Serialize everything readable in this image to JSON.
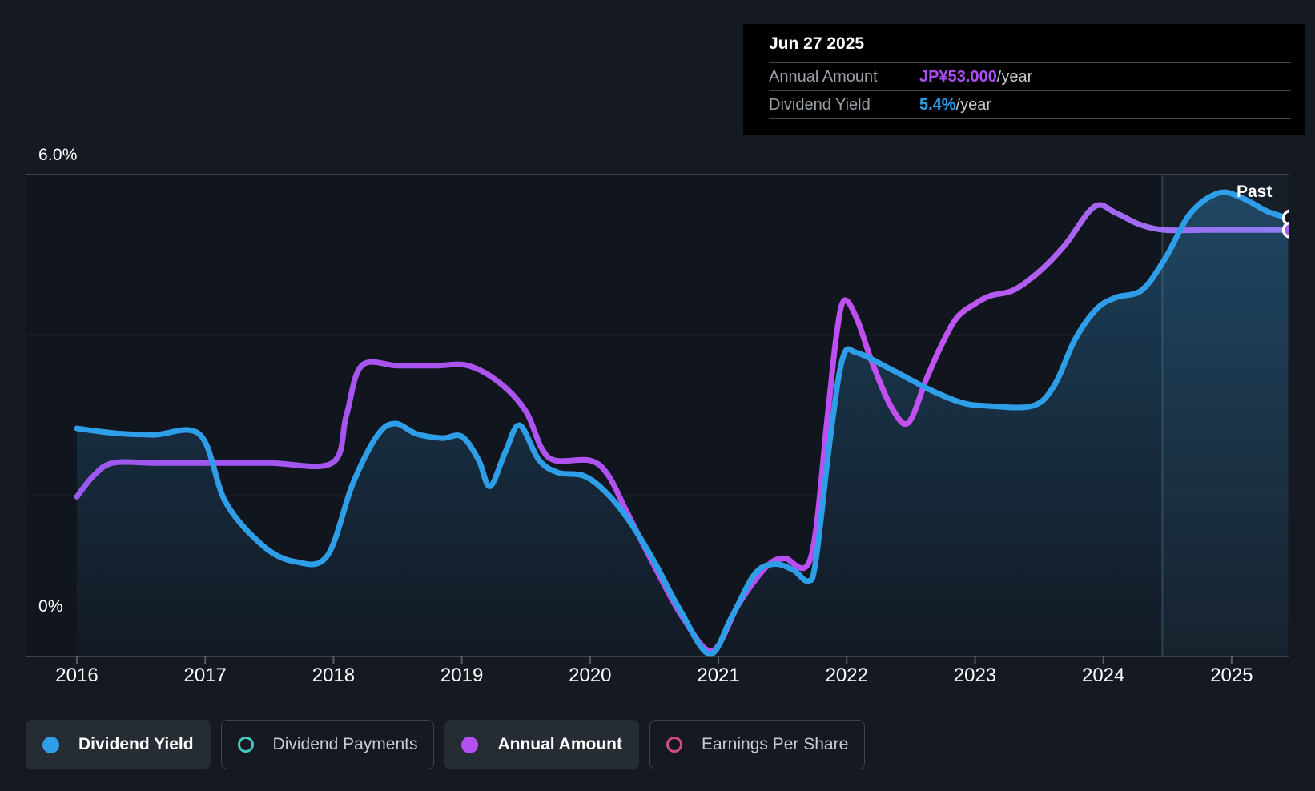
{
  "tooltip": {
    "date": "Jun 27 2025",
    "rows": [
      {
        "label": "Annual Amount",
        "value": "JP¥53.000",
        "suffix": "/year",
        "color": "#ab4ff2"
      },
      {
        "label": "Dividend Yield",
        "value": "5.4%",
        "suffix": "/year",
        "color": "#2f9ee8"
      }
    ]
  },
  "past_label": "Past",
  "legend": {
    "items": [
      {
        "label": "Dividend Yield",
        "marker": "filled",
        "color": "#2f9ee8",
        "active": true
      },
      {
        "label": "Dividend Payments",
        "marker": "ring",
        "color": "#45c8bb",
        "active": false
      },
      {
        "label": "Annual Amount",
        "marker": "filled",
        "color": "#b44ff0",
        "active": true
      },
      {
        "label": "Earnings Per Share",
        "marker": "ring",
        "color": "#d04a86",
        "active": false
      }
    ]
  },
  "chart_data": {
    "type": "line",
    "title": "Dividend yield and annual dividend amount history",
    "x_ticks": [
      2016,
      2017,
      2018,
      2019,
      2020,
      2021,
      2022,
      2023,
      2024,
      2025
    ],
    "xlim": [
      2016,
      2025.45
    ],
    "ylim": [
      0,
      6
    ],
    "y_axis": {
      "top_label": "6.0%",
      "bottom_label": "0%",
      "gridlines_pct": [
        0,
        2,
        4,
        6
      ]
    },
    "grid": "horizontal-only",
    "legend_position": "bottom",
    "past_divider_x": 2024.46,
    "series": [
      {
        "name": "Dividend Yield",
        "unit": "percent",
        "style": "area",
        "color": "#2f9ee8",
        "points": [
          [
            2016.0,
            2.84
          ],
          [
            2016.3,
            2.78
          ],
          [
            2016.6,
            2.76
          ],
          [
            2016.96,
            2.76
          ],
          [
            2017.16,
            1.92
          ],
          [
            2017.45,
            1.38
          ],
          [
            2017.7,
            1.18
          ],
          [
            2017.95,
            1.25
          ],
          [
            2018.15,
            2.15
          ],
          [
            2018.34,
            2.75
          ],
          [
            2018.48,
            2.9
          ],
          [
            2018.65,
            2.77
          ],
          [
            2018.85,
            2.72
          ],
          [
            2019.0,
            2.74
          ],
          [
            2019.13,
            2.45
          ],
          [
            2019.22,
            2.12
          ],
          [
            2019.34,
            2.55
          ],
          [
            2019.45,
            2.88
          ],
          [
            2019.6,
            2.45
          ],
          [
            2019.75,
            2.29
          ],
          [
            2019.95,
            2.25
          ],
          [
            2020.12,
            2.05
          ],
          [
            2020.3,
            1.7
          ],
          [
            2020.5,
            1.18
          ],
          [
            2020.7,
            0.58
          ],
          [
            2020.93,
            0.03
          ],
          [
            2021.1,
            0.48
          ],
          [
            2021.28,
            1.02
          ],
          [
            2021.43,
            1.15
          ],
          [
            2021.58,
            1.08
          ],
          [
            2021.7,
            0.94
          ],
          [
            2021.76,
            1.2
          ],
          [
            2021.87,
            2.7
          ],
          [
            2021.97,
            3.72
          ],
          [
            2022.08,
            3.78
          ],
          [
            2022.35,
            3.57
          ],
          [
            2022.65,
            3.32
          ],
          [
            2022.9,
            3.16
          ],
          [
            2023.1,
            3.12
          ],
          [
            2023.45,
            3.12
          ],
          [
            2023.62,
            3.38
          ],
          [
            2023.78,
            3.95
          ],
          [
            2023.95,
            4.33
          ],
          [
            2024.1,
            4.47
          ],
          [
            2024.3,
            4.56
          ],
          [
            2024.48,
            4.95
          ],
          [
            2024.68,
            5.52
          ],
          [
            2024.9,
            5.77
          ],
          [
            2025.08,
            5.71
          ],
          [
            2025.28,
            5.54
          ],
          [
            2025.44,
            5.46
          ]
        ]
      },
      {
        "name": "Annual Amount",
        "unit": "JPY_per_year",
        "plot_scale": "JP¥10 per 1% of the yield axis",
        "style": "line",
        "color": "#b44ff0",
        "color_gradient": [
          "#9b59f0",
          "#b84ff0",
          "#c44ff0",
          "#8b7cf5"
        ],
        "points": [
          [
            2016.0,
            19.9
          ],
          [
            2016.13,
            22.5
          ],
          [
            2016.28,
            24.1
          ],
          [
            2016.6,
            24.1
          ],
          [
            2017.0,
            24.1
          ],
          [
            2017.5,
            24.1
          ],
          [
            2017.99,
            24.1
          ],
          [
            2018.1,
            30.0
          ],
          [
            2018.22,
            36.2
          ],
          [
            2018.5,
            36.2
          ],
          [
            2018.8,
            36.2
          ],
          [
            2019.05,
            36.2
          ],
          [
            2019.3,
            34.0
          ],
          [
            2019.5,
            30.5
          ],
          [
            2019.62,
            26.0
          ],
          [
            2019.73,
            24.4
          ],
          [
            2020.0,
            24.4
          ],
          [
            2020.14,
            22.6
          ],
          [
            2020.28,
            18.2
          ],
          [
            2020.5,
            11.3
          ],
          [
            2020.72,
            4.9
          ],
          [
            2020.95,
            0.7
          ],
          [
            2021.15,
            6.3
          ],
          [
            2021.3,
            9.8
          ],
          [
            2021.42,
            11.8
          ],
          [
            2021.52,
            12.2
          ],
          [
            2021.72,
            12.3
          ],
          [
            2021.85,
            29.9
          ],
          [
            2021.92,
            40.0
          ],
          [
            2021.98,
            44.3
          ],
          [
            2022.08,
            42.0
          ],
          [
            2022.2,
            36.5
          ],
          [
            2022.35,
            31.0
          ],
          [
            2022.48,
            29.1
          ],
          [
            2022.62,
            34.5
          ],
          [
            2022.74,
            38.8
          ],
          [
            2022.86,
            42.2
          ],
          [
            2023.0,
            43.9
          ],
          [
            2023.12,
            44.9
          ],
          [
            2023.3,
            45.6
          ],
          [
            2023.5,
            47.9
          ],
          [
            2023.7,
            51.2
          ],
          [
            2023.93,
            56.0
          ],
          [
            2024.1,
            55.2
          ],
          [
            2024.28,
            53.8
          ],
          [
            2024.48,
            53.1
          ],
          [
            2024.8,
            53.1
          ],
          [
            2025.1,
            53.1
          ],
          [
            2025.44,
            53.1
          ]
        ]
      }
    ],
    "end_markers": [
      {
        "series": "Dividend Yield",
        "x": 2025.46,
        "y_pct": 5.46,
        "fill": "#10151c",
        "ring": "#ffffff"
      },
      {
        "series": "Annual Amount",
        "x": 2025.46,
        "y_pct": 5.31,
        "fill": "#a95df2",
        "ring": "#ffffff"
      }
    ]
  },
  "colors": {
    "background": "#151a22",
    "plot_background": "#11151d",
    "grid_strong": "#3b424c",
    "grid_faint": "rgba(151,163,177,0.13)",
    "tick": "#565c66",
    "text_primary": "#ffffff",
    "text_muted": "#9aa1a8",
    "past_band": "rgba(96,152,194,0.07)",
    "past_divider_line": "rgba(139,173,204,0.25)",
    "tooltip_bg": "#000000",
    "tooltip_divider": "#41464d",
    "area_top": "rgba(46,134,192,0.40)",
    "area_bottom": "rgba(46,134,192,0.04)"
  }
}
